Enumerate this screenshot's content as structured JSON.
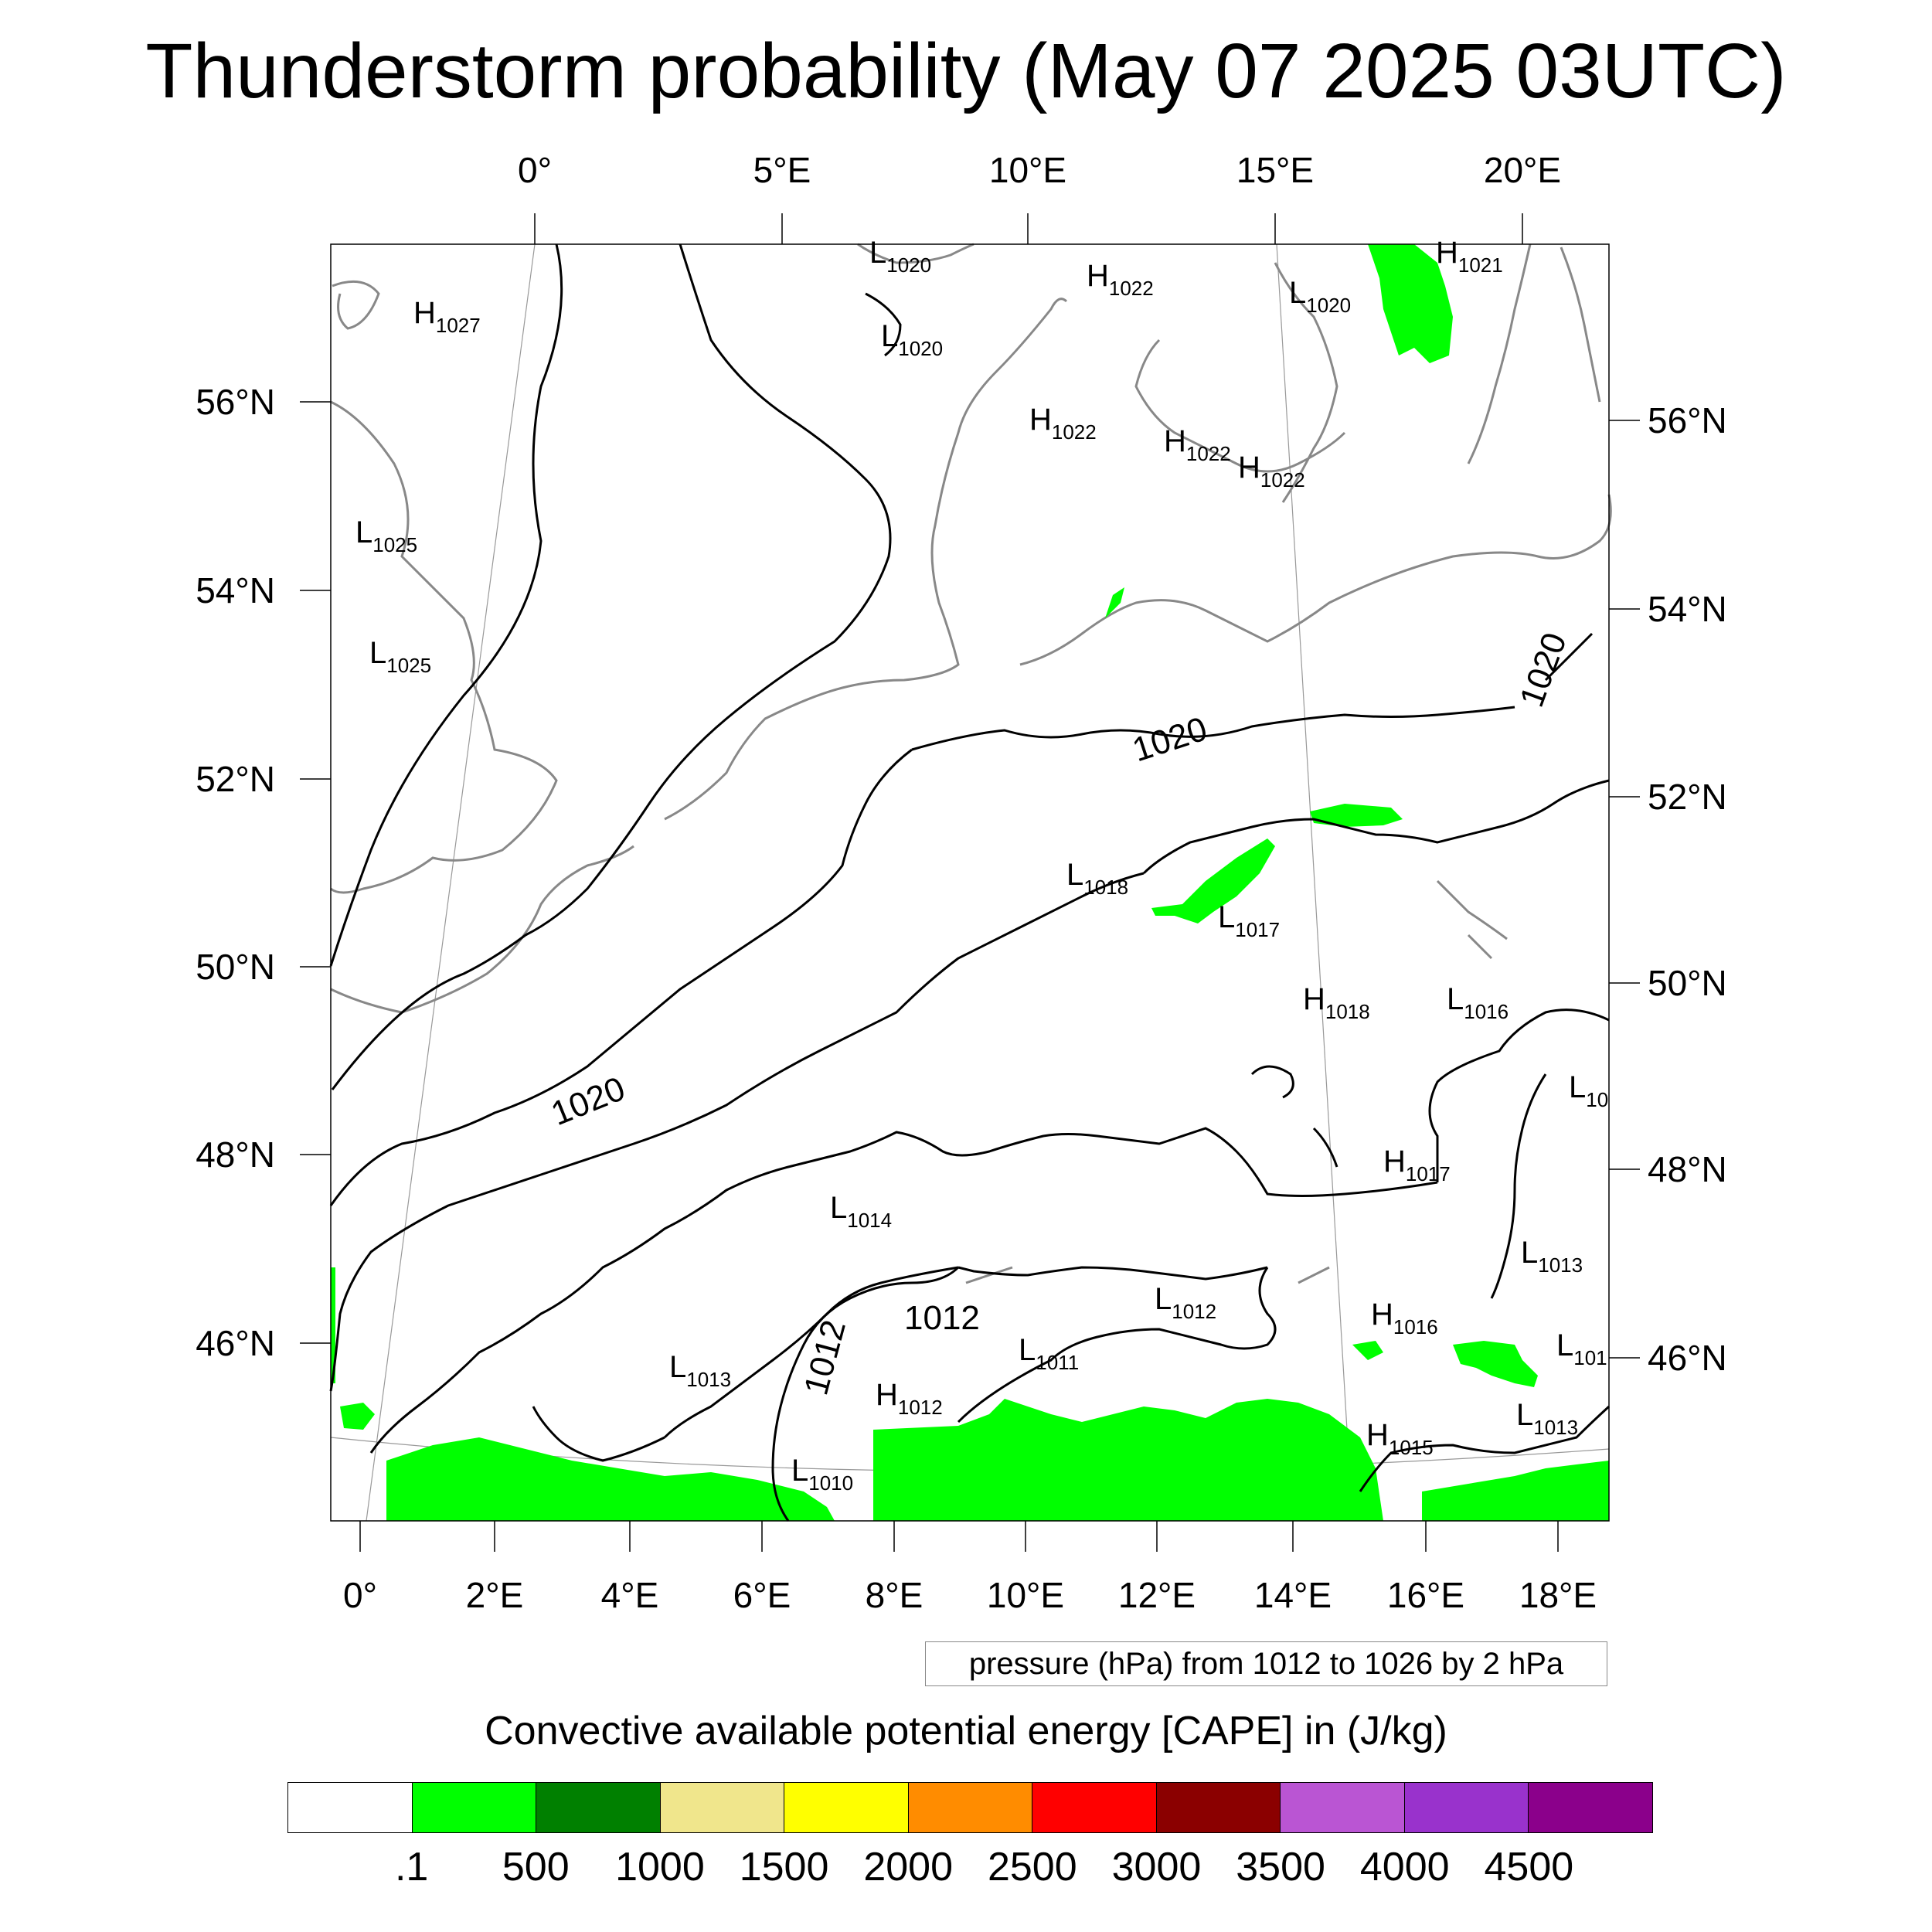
{
  "title": "Thunderstorm probability (May 07 2025 03UTC)",
  "top_axis_labels": [
    "0°",
    "5°E",
    "10°E",
    "15°E",
    "20°E"
  ],
  "bottom_axis_labels": [
    "0°",
    "2°E",
    "4°E",
    "6°E",
    "8°E",
    "10°E",
    "12°E",
    "14°E",
    "16°E",
    "18°E"
  ],
  "left_axis_labels": [
    "56°N",
    "54°N",
    "52°N",
    "50°N",
    "48°N",
    "46°N"
  ],
  "right_axis_labels": [
    "56°N",
    "54°N",
    "52°N",
    "50°N",
    "48°N",
    "46°N"
  ],
  "pressure_centers": [
    {
      "letter": "L",
      "value": "1020"
    },
    {
      "letter": "H",
      "value": "1022"
    },
    {
      "letter": "L",
      "value": "1020"
    },
    {
      "letter": "H",
      "value": "1021"
    },
    {
      "letter": "H",
      "value": "1027"
    },
    {
      "letter": "L",
      "value": "1020"
    },
    {
      "letter": "H",
      "value": "1022"
    },
    {
      "letter": "H",
      "value": "1022"
    },
    {
      "letter": "H",
      "value": "1022"
    },
    {
      "letter": "L",
      "value": "1025"
    },
    {
      "letter": "L",
      "value": "1025"
    },
    {
      "letter": "L",
      "value": "1018"
    },
    {
      "letter": "L",
      "value": "1017"
    },
    {
      "letter": "H",
      "value": "1018"
    },
    {
      "letter": "L",
      "value": "1016"
    },
    {
      "letter": "L",
      "value": "10"
    },
    {
      "letter": "H",
      "value": "1017"
    },
    {
      "letter": "L",
      "value": "1014"
    },
    {
      "letter": "L",
      "value": "1013"
    },
    {
      "letter": "L",
      "value": "1012"
    },
    {
      "letter": "H",
      "value": "1016"
    },
    {
      "letter": "L",
      "value": "101"
    },
    {
      "letter": "L",
      "value": "1013"
    },
    {
      "letter": "L",
      "value": "1011"
    },
    {
      "letter": "H",
      "value": "1012"
    },
    {
      "letter": "L",
      "value": "1013"
    },
    {
      "letter": "H",
      "value": "1015"
    },
    {
      "letter": "L",
      "value": "1010"
    }
  ],
  "isobar_labels": [
    "1020",
    "1020",
    "1020",
    "1012",
    "1012"
  ],
  "contour_info": "pressure (hPa) from 1012 to 1026 by 2 hPa",
  "colorbar": {
    "title": "Convective available potential energy [CAPE] in (J/kg)",
    "colors": [
      "#ffffff",
      "#00ff00",
      "#008000",
      "#f0e68c",
      "#ffff00",
      "#ff8c00",
      "#ff0000",
      "#8b0000",
      "#ba55d3",
      "#9932cc",
      "#8b008b"
    ],
    "labels": [
      ".1",
      "500",
      "1000",
      "1500",
      "2000",
      "2500",
      "3000",
      "3500",
      "4000",
      "4500"
    ]
  }
}
